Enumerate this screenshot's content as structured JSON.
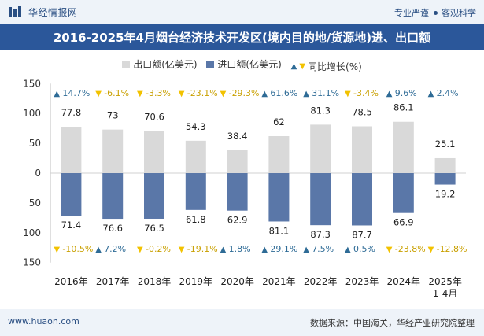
{
  "header": {
    "brand": "华经情报网",
    "tagline_left": "专业严谨",
    "tagline_right": "客观科学"
  },
  "title": "2016-2025年4月烟台经济技术开发区(境内目的地/货源地)进、出口额",
  "footer": {
    "site": "www.huaon.com",
    "source": "数据来源：中国海关，华经产业研究院整理"
  },
  "colors": {
    "export": "#d9d9d9",
    "import": "#5a77a8",
    "up": "#2e6b96",
    "down": "#f2c200",
    "title_bar": "#2b579a"
  },
  "chart_data": {
    "type": "bar",
    "categories": [
      "2016年",
      "2017年",
      "2018年",
      "2019年",
      "2020年",
      "2021年",
      "2022年",
      "2023年",
      "2024年",
      "2025年\n1-4月"
    ],
    "series": [
      {
        "name": "出口额(亿美元)",
        "values": [
          77.8,
          73,
          70.6,
          54.3,
          38.4,
          62,
          81.3,
          78.5,
          86.1,
          25.1
        ]
      },
      {
        "name": "进口额(亿美元)",
        "values": [
          71.4,
          76.6,
          76.5,
          61.8,
          62.9,
          81.1,
          87.3,
          87.7,
          66.9,
          19.2
        ]
      }
    ],
    "export_growth": [
      "14.7%",
      "-6.1%",
      "-3.3%",
      "-23.1%",
      "-29.3%",
      "61.6%",
      "31.1%",
      "-3.4%",
      "9.6%",
      "2.4%"
    ],
    "import_growth": [
      "-10.5%",
      "7.2%",
      "-0.2%",
      "-19.1%",
      "1.8%",
      "29.1%",
      "7.5%",
      "0.5%",
      "-23.8%",
      "-12.8%"
    ],
    "growth_legend": "同比增长(%)",
    "ylim": [
      -150,
      150
    ],
    "yticks": [
      150,
      100,
      50,
      0,
      50,
      100,
      150
    ],
    "xlabel": "",
    "ylabel": ""
  }
}
